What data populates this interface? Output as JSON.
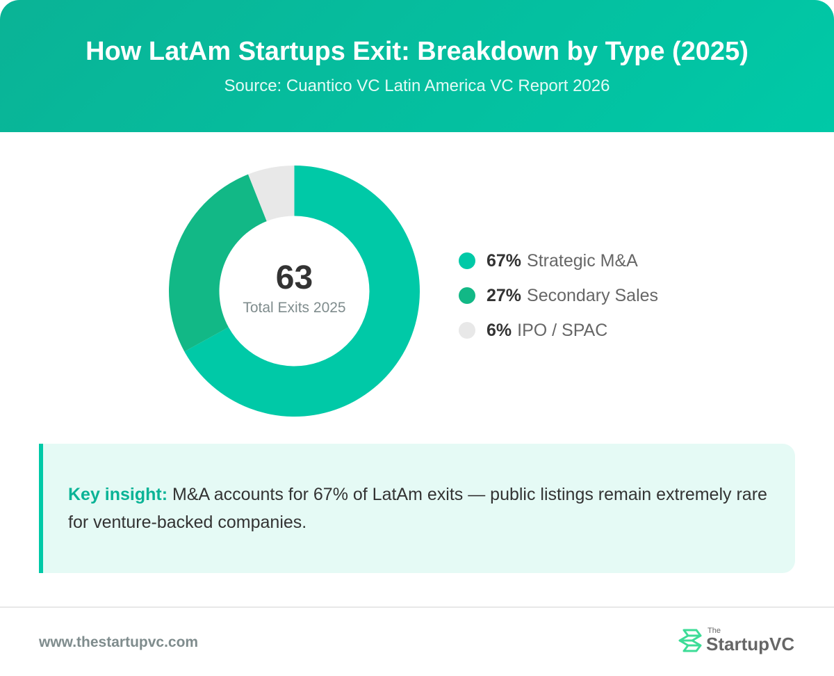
{
  "header": {
    "title": "How LatAm Startups Exit: Breakdown by Type (2025)",
    "subtitle": "Source: Cuantico VC Latin America VC Report 2026"
  },
  "center": {
    "value": "63",
    "caption": "Total Exits 2025"
  },
  "legend": [
    {
      "pct": "67%",
      "label": "Strategic M&A",
      "color": "#00c9a7"
    },
    {
      "pct": "27%",
      "label": "Secondary Sales",
      "color": "#12b886"
    },
    {
      "pct": "6%",
      "label": "IPO / SPAC",
      "color": "#e8e8e8"
    }
  ],
  "insight": {
    "key": "Key insight:",
    "text": " M&A accounts for 67% of LatAm exits — public listings remain extremely rare for venture-backed companies."
  },
  "footer": {
    "url": "www.thestartupvc.com",
    "logo_small": "The",
    "logo_main": "StartupVC"
  },
  "colors": {
    "accent": "#00c9a7",
    "secondary": "#12b886",
    "muted": "#e8e8e8",
    "insight_bg": "#e5faf5"
  },
  "chart_data": {
    "type": "pie",
    "variant": "donut",
    "title": "How LatAm Startups Exit: Breakdown by Type (2025)",
    "subtitle": "Source: Cuantico VC Latin America VC Report 2026",
    "categories": [
      "Strategic M&A",
      "Secondary Sales",
      "IPO / SPAC"
    ],
    "values": [
      67,
      27,
      6
    ],
    "unit": "%",
    "colors": [
      "#00c9a7",
      "#12b886",
      "#e8e8e8"
    ],
    "center_annotation": {
      "value": 63,
      "label": "Total Exits 2025"
    },
    "legend_position": "right"
  }
}
